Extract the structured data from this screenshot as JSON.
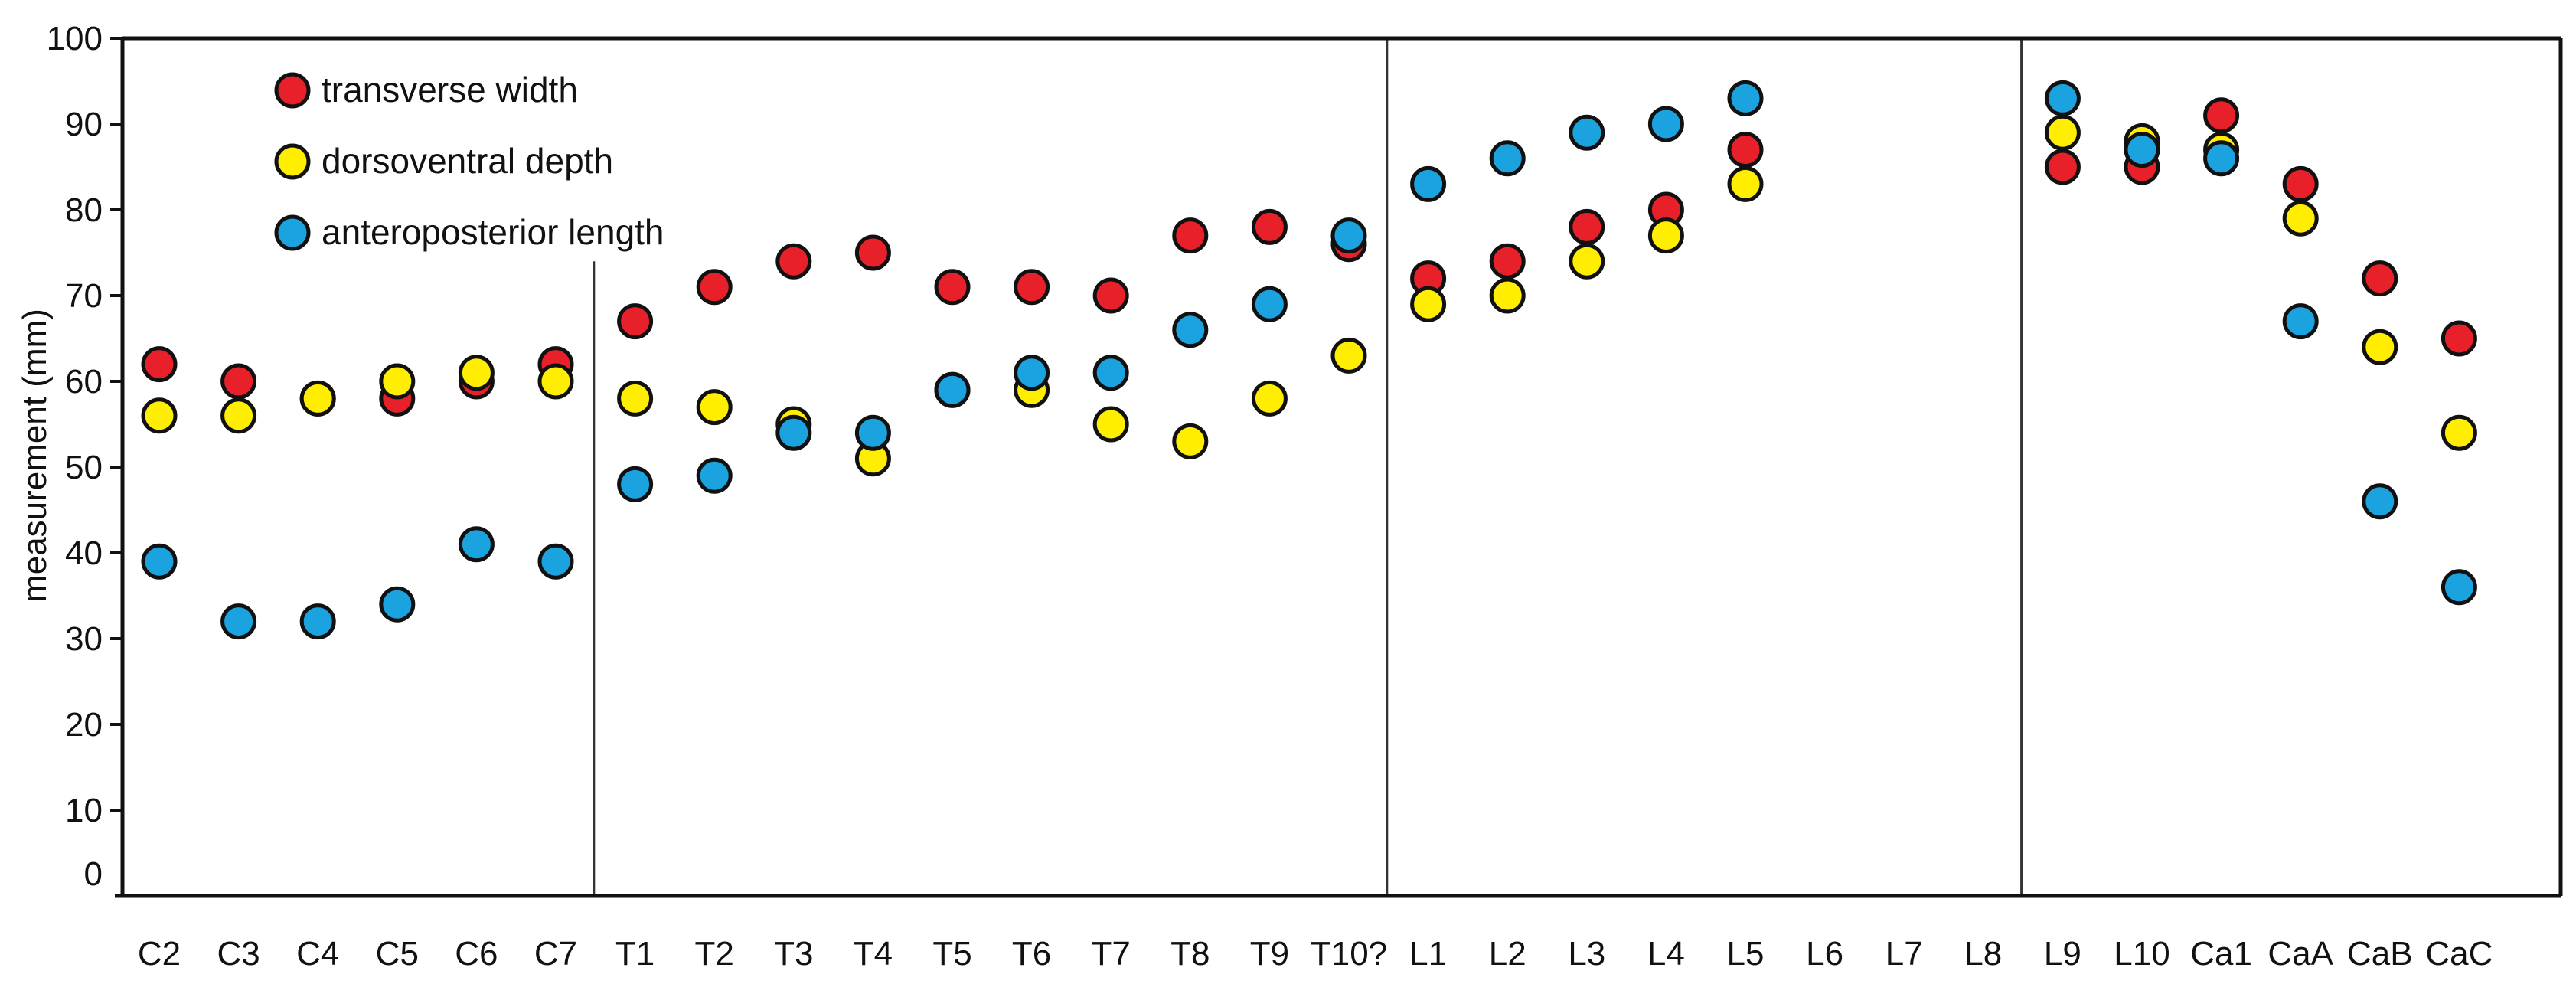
{
  "chart_data": {
    "type": "scatter",
    "title": "",
    "xlabel": "",
    "ylabel": "measurement (mm)",
    "ylim": [
      0,
      100
    ],
    "y_ticks": [
      100,
      90,
      80,
      70,
      60,
      50,
      40,
      30,
      20,
      10,
      0
    ],
    "grid": false,
    "legend_position": "top-left",
    "categories": [
      "C2",
      "C3",
      "C4",
      "C5",
      "C6",
      "C7",
      "T1",
      "T2",
      "T3",
      "T4",
      "T5",
      "T6",
      "T7",
      "T8",
      "T9",
      "T10?",
      "L1",
      "L2",
      "L3",
      "L4",
      "L5",
      "L6",
      "L7",
      "L8",
      "L9",
      "L10",
      "Ca1",
      "CaA",
      "CaB",
      "CaC"
    ],
    "dividers_after": [
      "C7",
      "T10?",
      "L8"
    ],
    "series": [
      {
        "name": "transverse width",
        "color": "#e8202a",
        "values": [
          62,
          60,
          58,
          58,
          60,
          62,
          67,
          71,
          74,
          75,
          71,
          71,
          70,
          77,
          78,
          76,
          72,
          74,
          78,
          80,
          87,
          null,
          null,
          null,
          85,
          85,
          91,
          83,
          72,
          65
        ]
      },
      {
        "name": "dorsoventral depth",
        "color": "#ffee00",
        "values": [
          56,
          56,
          58,
          60,
          61,
          60,
          58,
          57,
          55,
          51,
          59,
          59,
          55,
          53,
          58,
          63,
          69,
          70,
          74,
          77,
          83,
          null,
          null,
          null,
          89,
          88,
          87,
          79,
          64,
          54
        ]
      },
      {
        "name": "anteroposterior length",
        "color": "#1ba3e0",
        "values": [
          39,
          32,
          32,
          34,
          41,
          39,
          48,
          49,
          54,
          54,
          59,
          61,
          61,
          66,
          69,
          77,
          83,
          86,
          89,
          90,
          93,
          null,
          null,
          null,
          93,
          87,
          86,
          67,
          46,
          36
        ]
      }
    ]
  }
}
